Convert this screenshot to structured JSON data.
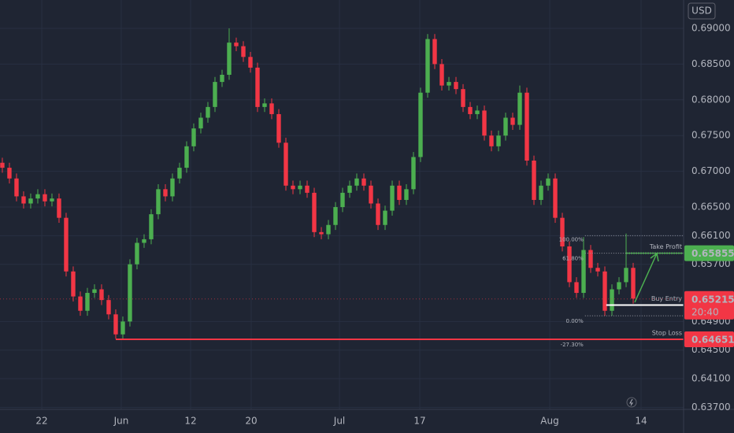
{
  "chart_data": {
    "type": "candlestick",
    "currency": "USD",
    "up_color": "#4caf50",
    "down_color": "#f23645",
    "xlim": [
      -0.33,
      96.11
    ],
    "xticks": [
      {
        "value": 5.56,
        "label": "22"
      },
      {
        "value": 16.78,
        "label": "Jun"
      },
      {
        "value": 26.56,
        "label": "12"
      },
      {
        "value": 35.11,
        "label": "20"
      },
      {
        "value": 47.56,
        "label": "Jul"
      },
      {
        "value": 58.89,
        "label": "17"
      },
      {
        "value": 77.22,
        "label": "Aug"
      },
      {
        "value": 90.11,
        "label": "14"
      }
    ],
    "ylim": [
      0.63671,
      0.69396
    ],
    "yticks": [
      {
        "value": 0.69,
        "label": "0.69000"
      },
      {
        "value": 0.685,
        "label": "0.68500"
      },
      {
        "value": 0.68,
        "label": "0.68000"
      },
      {
        "value": 0.675,
        "label": "0.67500"
      },
      {
        "value": 0.67,
        "label": "0.67000"
      },
      {
        "value": 0.665,
        "label": "0.66500"
      },
      {
        "value": 0.661,
        "label": "0.66100"
      },
      {
        "value": 0.657,
        "label": "0.65700"
      },
      {
        "value": 0.649,
        "label": "0.64900"
      },
      {
        "value": 0.645,
        "label": "0.64500"
      },
      {
        "value": 0.641,
        "label": "0.64100"
      },
      {
        "value": 0.637,
        "label": "0.63700"
      }
    ],
    "open": [
      0.6712,
      0.6705,
      0.669,
      0.6665,
      0.6655,
      0.6662,
      0.6668,
      0.6658,
      0.6662,
      0.6635,
      0.656,
      0.6525,
      0.6505,
      0.653,
      0.6535,
      0.652,
      0.65,
      0.6472,
      0.649,
      0.657,
      0.66,
      0.6605,
      0.664,
      0.6675,
      0.6665,
      0.669,
      0.6705,
      0.6735,
      0.676,
      0.6775,
      0.679,
      0.6825,
      0.6835,
      0.688,
      0.6875,
      0.686,
      0.6845,
      0.679,
      0.6795,
      0.678,
      0.674,
      0.668,
      0.6675,
      0.668,
      0.667,
      0.6615,
      0.6612,
      0.6625,
      0.665,
      0.667,
      0.668,
      0.669,
      0.668,
      0.6655,
      0.6625,
      0.6645,
      0.668,
      0.666,
      0.6675,
      0.672,
      0.681,
      0.6885,
      0.685,
      0.682,
      0.6825,
      0.6815,
      0.679,
      0.678,
      0.6785,
      0.675,
      0.6735,
      0.675,
      0.6775,
      0.6765,
      0.681,
      0.6715,
      0.666,
      0.668,
      0.669,
      0.6635,
      0.6595,
      0.6545,
      0.653,
      0.659,
      0.6565,
      0.656,
      0.6505,
      0.6535,
      0.6545,
      0.6565
    ],
    "high": [
      0.6719,
      0.6712,
      0.6697,
      0.6672,
      0.6669,
      0.6675,
      0.6675,
      0.6669,
      0.6669,
      0.6642,
      0.6567,
      0.6532,
      0.6537,
      0.6542,
      0.6542,
      0.6527,
      0.6507,
      0.6497,
      0.6577,
      0.6607,
      0.6612,
      0.6647,
      0.6682,
      0.6682,
      0.6697,
      0.6712,
      0.6742,
      0.6767,
      0.6782,
      0.6797,
      0.6832,
      0.6842,
      0.69,
      0.6887,
      0.6882,
      0.6867,
      0.6852,
      0.6802,
      0.6802,
      0.6787,
      0.6747,
      0.6687,
      0.6687,
      0.6687,
      0.6677,
      0.6622,
      0.6632,
      0.6657,
      0.6677,
      0.6687,
      0.6697,
      0.6697,
      0.6687,
      0.6662,
      0.6652,
      0.6687,
      0.6687,
      0.6682,
      0.6727,
      0.6817,
      0.6892,
      0.6892,
      0.6857,
      0.6832,
      0.6832,
      0.6822,
      0.6797,
      0.6792,
      0.6792,
      0.6757,
      0.6757,
      0.6782,
      0.6782,
      0.682,
      0.6817,
      0.6722,
      0.6687,
      0.6697,
      0.6697,
      0.6642,
      0.6602,
      0.6552,
      0.6608,
      0.6597,
      0.6572,
      0.6567,
      0.6542,
      0.6552,
      0.6613,
      0.6572
    ],
    "low": [
      0.6698,
      0.6683,
      0.6658,
      0.6648,
      0.6648,
      0.6655,
      0.6651,
      0.6651,
      0.6628,
      0.6553,
      0.6518,
      0.6498,
      0.6498,
      0.6523,
      0.6513,
      0.6493,
      0.6466,
      0.6465,
      0.6483,
      0.6563,
      0.6593,
      0.6598,
      0.6633,
      0.6658,
      0.6658,
      0.6683,
      0.6698,
      0.6728,
      0.6753,
      0.6768,
      0.6783,
      0.6818,
      0.6828,
      0.6868,
      0.6853,
      0.6838,
      0.6783,
      0.6783,
      0.6773,
      0.6733,
      0.6673,
      0.6668,
      0.6668,
      0.6663,
      0.6608,
      0.6605,
      0.6605,
      0.6618,
      0.6643,
      0.6663,
      0.6673,
      0.6673,
      0.6648,
      0.6618,
      0.6618,
      0.6638,
      0.6653,
      0.6653,
      0.6668,
      0.6713,
      0.6803,
      0.6843,
      0.6813,
      0.6813,
      0.6808,
      0.6783,
      0.6773,
      0.6773,
      0.6743,
      0.6728,
      0.6728,
      0.6743,
      0.6758,
      0.6758,
      0.6708,
      0.6653,
      0.6653,
      0.6673,
      0.6628,
      0.6588,
      0.6538,
      0.6523,
      0.6523,
      0.6558,
      0.6553,
      0.6498,
      0.6498,
      0.6528,
      0.6538,
      0.6515
    ],
    "close": [
      0.6705,
      0.669,
      0.6665,
      0.6655,
      0.6662,
      0.6668,
      0.6658,
      0.6662,
      0.6635,
      0.656,
      0.6525,
      0.6505,
      0.653,
      0.6535,
      0.652,
      0.65,
      0.6472,
      0.649,
      0.657,
      0.66,
      0.6605,
      0.664,
      0.6675,
      0.6665,
      0.669,
      0.6705,
      0.6735,
      0.676,
      0.6775,
      0.679,
      0.6825,
      0.6835,
      0.688,
      0.6875,
      0.686,
      0.6845,
      0.679,
      0.6795,
      0.678,
      0.674,
      0.668,
      0.6675,
      0.668,
      0.667,
      0.6615,
      0.6612,
      0.6625,
      0.665,
      0.667,
      0.668,
      0.669,
      0.668,
      0.6655,
      0.6625,
      0.6645,
      0.668,
      0.666,
      0.6675,
      0.672,
      0.681,
      0.6885,
      0.685,
      0.682,
      0.6825,
      0.6815,
      0.679,
      0.678,
      0.6785,
      0.675,
      0.6735,
      0.675,
      0.6775,
      0.6765,
      0.681,
      0.6715,
      0.666,
      0.668,
      0.669,
      0.6635,
      0.6595,
      0.6545,
      0.653,
      0.659,
      0.6565,
      0.656,
      0.6505,
      0.6535,
      0.6545,
      0.6565,
      0.6522
    ],
    "fib_levels": [
      {
        "label": "100.00%",
        "value": 0.661
      },
      {
        "label": "61.80%",
        "value": 0.65855
      },
      {
        "label": "0.00%",
        "value": 0.6498
      },
      {
        "label": "-27.30%",
        "value": 0.6465
      }
    ],
    "levels": [
      {
        "label": "Take Profit",
        "value": 0.65855,
        "color": "#4caf50"
      },
      {
        "label": "Buy Entry",
        "value": 0.6513,
        "color": "#ffffff"
      },
      {
        "label": "Stop Loss",
        "value": 0.64651,
        "color": "#f23645"
      }
    ],
    "price_labels": [
      {
        "value": 0.65855,
        "label": "0.65855",
        "color": "#4caf50"
      },
      {
        "value": 0.65215,
        "label": "0.65215",
        "countdown": "20:40",
        "color": "#f23645"
      },
      {
        "value": 0.64651,
        "label": "0.64651",
        "color": "#f23645"
      }
    ]
  }
}
